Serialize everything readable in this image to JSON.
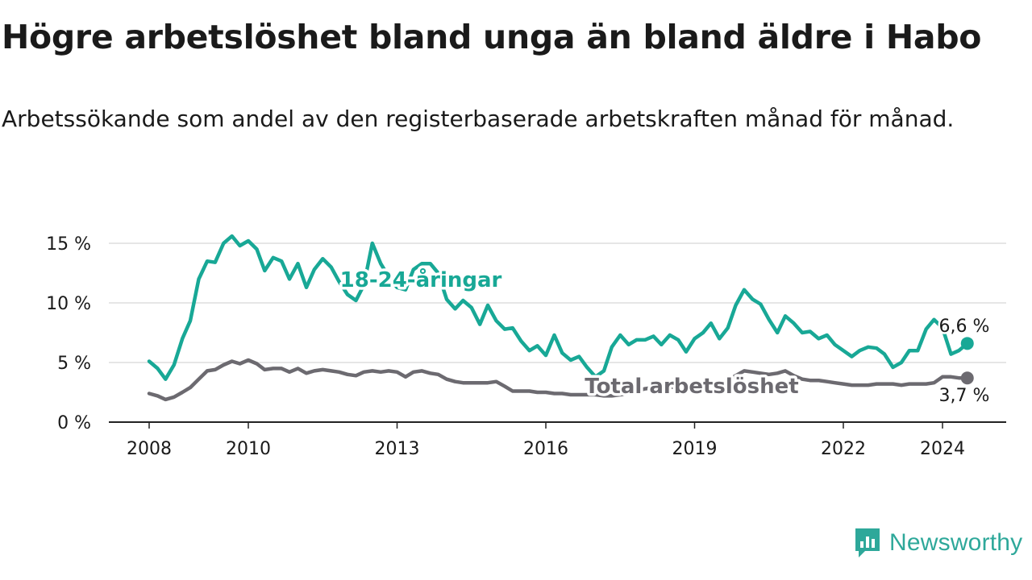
{
  "title": "Högre arbetslöshet bland unga än bland äldre i Habo",
  "subtitle": "Arbetssökande som andel av den registerbaserade arbetskraften månad för månad.",
  "brand": {
    "name": "Newsworthy",
    "icon": "newsworthy-logo-icon"
  },
  "colors": {
    "youth": "#18a896",
    "total": "#6c6a70",
    "grid": "#dddddd",
    "axis": "#222222",
    "text": "#1a1a1a",
    "brand": "#2ea89a"
  },
  "chart_data": {
    "type": "line",
    "title": "Högre arbetslöshet bland unga än bland äldre i Habo",
    "xlabel": "",
    "ylabel": "",
    "ylim": [
      0,
      15
    ],
    "xlim": [
      2007.8,
      2025.2
    ],
    "y_ticks": [
      0,
      5,
      10,
      15
    ],
    "y_tick_labels": [
      "0 %",
      "5 %",
      "10 %",
      "15 %"
    ],
    "x_ticks": [
      2008,
      2010,
      2013,
      2016,
      2019,
      2022,
      2024
    ],
    "x_tick_labels": [
      "2008",
      "2010",
      "2013",
      "2016",
      "2019",
      "2022",
      "2024"
    ],
    "grid": true,
    "legend": "inline labels",
    "series": [
      {
        "name": "18-24-åringar",
        "label": "18-24-åringar",
        "end_label": "6,6 %",
        "x": [
          2008.0,
          2008.17,
          2008.33,
          2008.5,
          2008.67,
          2008.83,
          2009.0,
          2009.17,
          2009.33,
          2009.5,
          2009.67,
          2009.83,
          2010.0,
          2010.17,
          2010.33,
          2010.5,
          2010.67,
          2010.83,
          2011.0,
          2011.17,
          2011.33,
          2011.5,
          2011.67,
          2011.83,
          2012.0,
          2012.17,
          2012.33,
          2012.5,
          2012.67,
          2012.83,
          2013.0,
          2013.17,
          2013.33,
          2013.5,
          2013.67,
          2013.83,
          2014.0,
          2014.17,
          2014.33,
          2014.5,
          2014.67,
          2014.83,
          2015.0,
          2015.17,
          2015.33,
          2015.5,
          2015.67,
          2015.83,
          2016.0,
          2016.17,
          2016.33,
          2016.5,
          2016.67,
          2016.83,
          2017.0,
          2017.17,
          2017.33,
          2017.5,
          2017.67,
          2017.83,
          2018.0,
          2018.17,
          2018.33,
          2018.5,
          2018.67,
          2018.83,
          2019.0,
          2019.17,
          2019.33,
          2019.5,
          2019.67,
          2019.83,
          2020.0,
          2020.17,
          2020.33,
          2020.5,
          2020.67,
          2020.83,
          2021.0,
          2021.17,
          2021.33,
          2021.5,
          2021.67,
          2021.83,
          2022.0,
          2022.17,
          2022.33,
          2022.5,
          2022.67,
          2022.83,
          2023.0,
          2023.17,
          2023.33,
          2023.5,
          2023.67,
          2023.83,
          2024.0,
          2024.17,
          2024.33,
          2024.5
        ],
        "y": [
          5.1,
          4.5,
          3.6,
          4.8,
          7.0,
          8.5,
          12.0,
          13.5,
          13.4,
          15.0,
          15.6,
          14.8,
          15.2,
          14.5,
          12.7,
          13.8,
          13.5,
          12.0,
          13.3,
          11.3,
          12.8,
          13.7,
          13.0,
          11.8,
          10.7,
          10.2,
          11.5,
          15.0,
          13.3,
          12.2,
          11.3,
          11.1,
          12.8,
          13.3,
          13.3,
          12.5,
          10.3,
          9.5,
          10.2,
          9.6,
          8.2,
          9.8,
          8.5,
          7.8,
          7.9,
          6.8,
          6.0,
          6.4,
          5.6,
          7.3,
          5.8,
          5.2,
          5.5,
          4.6,
          3.8,
          4.3,
          6.3,
          7.3,
          6.5,
          6.9,
          6.9,
          7.2,
          6.5,
          7.3,
          6.9,
          5.9,
          7.0,
          7.5,
          8.3,
          7.0,
          7.9,
          9.8,
          11.1,
          10.3,
          9.9,
          8.6,
          7.5,
          8.9,
          8.3,
          7.5,
          7.6,
          7.0,
          7.3,
          6.5,
          6.0,
          5.5,
          6.0,
          6.3,
          6.2,
          5.7,
          4.6,
          5.0,
          6.0,
          6.0,
          7.8,
          8.6,
          7.9,
          5.7,
          6.0,
          6.6
        ]
      },
      {
        "name": "Total arbetslöshet",
        "label": "Total arbetslöshet",
        "end_label": "3,7 %",
        "x": [
          2008.0,
          2008.17,
          2008.33,
          2008.5,
          2008.67,
          2008.83,
          2009.0,
          2009.17,
          2009.33,
          2009.5,
          2009.67,
          2009.83,
          2010.0,
          2010.17,
          2010.33,
          2010.5,
          2010.67,
          2010.83,
          2011.0,
          2011.17,
          2011.33,
          2011.5,
          2011.67,
          2011.83,
          2012.0,
          2012.17,
          2012.33,
          2012.5,
          2012.67,
          2012.83,
          2013.0,
          2013.17,
          2013.33,
          2013.5,
          2013.67,
          2013.83,
          2014.0,
          2014.17,
          2014.33,
          2014.5,
          2014.67,
          2014.83,
          2015.0,
          2015.17,
          2015.33,
          2015.5,
          2015.67,
          2015.83,
          2016.0,
          2016.17,
          2016.33,
          2016.5,
          2016.67,
          2016.83,
          2017.0,
          2017.17,
          2017.33,
          2017.5,
          2017.67,
          2017.83,
          2018.0,
          2018.17,
          2018.33,
          2018.5,
          2018.67,
          2018.83,
          2019.0,
          2019.17,
          2019.33,
          2019.5,
          2019.67,
          2019.83,
          2020.0,
          2020.17,
          2020.33,
          2020.5,
          2020.67,
          2020.83,
          2021.0,
          2021.17,
          2021.33,
          2021.5,
          2021.67,
          2021.83,
          2022.0,
          2022.17,
          2022.33,
          2022.5,
          2022.67,
          2022.83,
          2023.0,
          2023.17,
          2023.33,
          2023.5,
          2023.67,
          2023.83,
          2024.0,
          2024.17,
          2024.33,
          2024.5
        ],
        "y": [
          2.4,
          2.2,
          1.9,
          2.1,
          2.5,
          2.9,
          3.6,
          4.3,
          4.4,
          4.8,
          5.1,
          4.9,
          5.2,
          4.9,
          4.4,
          4.5,
          4.5,
          4.2,
          4.5,
          4.1,
          4.3,
          4.4,
          4.3,
          4.2,
          4.0,
          3.9,
          4.2,
          4.3,
          4.2,
          4.3,
          4.2,
          3.8,
          4.2,
          4.3,
          4.1,
          4.0,
          3.6,
          3.4,
          3.3,
          3.3,
          3.3,
          3.3,
          3.4,
          3.0,
          2.6,
          2.6,
          2.6,
          2.5,
          2.5,
          2.4,
          2.4,
          2.3,
          2.3,
          2.3,
          2.3,
          2.2,
          2.2,
          2.3,
          2.4,
          2.6,
          2.8,
          2.9,
          2.9,
          2.9,
          3.0,
          3.0,
          3.0,
          3.1,
          3.1,
          3.3,
          3.5,
          3.9,
          4.3,
          4.2,
          4.1,
          4.0,
          4.1,
          4.3,
          3.9,
          3.6,
          3.5,
          3.5,
          3.4,
          3.3,
          3.2,
          3.1,
          3.1,
          3.1,
          3.2,
          3.2,
          3.2,
          3.1,
          3.2,
          3.2,
          3.2,
          3.3,
          3.8,
          3.8,
          3.7,
          3.7
        ]
      }
    ]
  }
}
